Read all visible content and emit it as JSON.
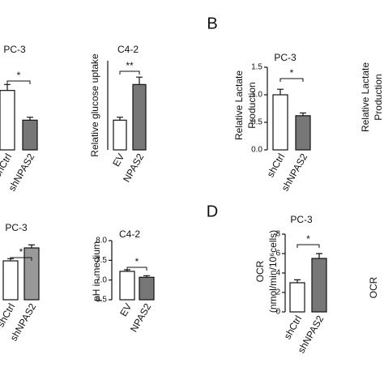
{
  "chart_data": [
    {
      "type": "bar",
      "title": "PC-3",
      "categories": [
        "shCtrl",
        "shNPAS2"
      ],
      "values": [
        1.0,
        0.5
      ],
      "errors": [
        0.1,
        0.05
      ],
      "colors": [
        "#ffffff",
        "#777777"
      ],
      "ylim": [
        0,
        1.5
      ],
      "significance": "*"
    },
    {
      "type": "bar",
      "title": "C4-2",
      "ylabel": [
        "Relative glucose uptake"
      ],
      "categories": [
        "EV",
        "NPAS2"
      ],
      "values": [
        1.0,
        2.2
      ],
      "errors": [
        0.1,
        0.25
      ],
      "colors": [
        "#ffffff",
        "#777777"
      ],
      "ylim": [
        0,
        3
      ],
      "significance": "**"
    },
    {
      "type": "bar",
      "panel": "B",
      "title": "PC-3",
      "ylabel": [
        "Relative Lactate",
        "Production"
      ],
      "categories": [
        "shCtrl",
        "shNPAS2"
      ],
      "values": [
        1.0,
        0.62
      ],
      "errors": [
        0.1,
        0.05
      ],
      "colors": [
        "#ffffff",
        "#777777"
      ],
      "ylim": [
        0,
        1.5
      ],
      "yticks": [
        {
          "value": 0,
          "label": "0.0"
        },
        0.5,
        {
          "value": 1,
          "label": "1.0"
        },
        1.5
      ],
      "significance": "*"
    },
    {
      "type": "bar",
      "ylabel": [
        "Relative  Lactate",
        "Production"
      ]
    },
    {
      "type": "bar",
      "title": "PC-3",
      "categories": [
        "shCtrl",
        "shNPAS2"
      ],
      "values": [
        0.9,
        1.2
      ],
      "errors": [
        0.05,
        0.07
      ],
      "colors": [
        "#ffffff",
        "#999999"
      ],
      "ylim": [
        0,
        1.5
      ],
      "significance": "*"
    },
    {
      "type": "bar",
      "title": "C4-2",
      "ylabel": [
        "pH in medium"
      ],
      "categories": [
        "EV",
        "NPAS2"
      ],
      "values": [
        7.22,
        7.07
      ],
      "errors": [
        0.04,
        0.04
      ],
      "colors": [
        "#ffffff",
        "#777777"
      ],
      "ylim": [
        6.5,
        8
      ],
      "yticks": [
        6.5,
        {
          "value": 7,
          "label": "7.0"
        },
        7.5,
        {
          "value": 8,
          "label": "8.0"
        }
      ],
      "significance": "*"
    },
    {
      "type": "bar",
      "panel": "D",
      "title": "PC-3",
      "ylabel": [
        "OCR",
        "(nmol/min/10⁶cells)"
      ],
      "categories": [
        "shCtrl",
        "shNPAS2"
      ],
      "values": [
        3.0,
        5.5
      ],
      "errors": [
        0.3,
        0.5
      ],
      "colors": [
        "#ffffff",
        "#777777"
      ],
      "ylim": [
        0,
        8
      ],
      "yticks": [
        0,
        2,
        4,
        6,
        8
      ],
      "significance": "*"
    },
    {
      "type": "bar",
      "ylabel": [
        "OCR"
      ]
    }
  ]
}
